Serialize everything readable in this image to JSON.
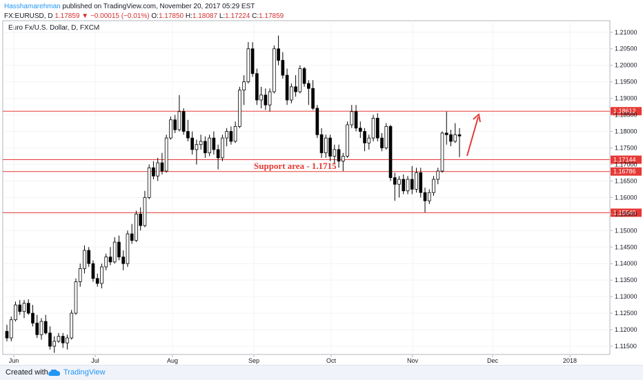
{
  "header": {
    "author": "Hasshamarehman",
    "published_text": "published on TradingView.com, November 20, 2017 05:29 EST",
    "symbol_line": "FX:EURUSD, D",
    "last_price": "1.17859",
    "change_arrow": "▼",
    "change": "−0.00015 (−0.01%)",
    "o_label": "O:",
    "o_value": "1.17850",
    "h_label": "H:",
    "h_value": "1.18087",
    "l_label": "L:",
    "l_value": "1.17224",
    "c_label": "C:",
    "c_value": "1.17859"
  },
  "colors": {
    "up": "#ffffff",
    "down": "#000000",
    "line": "#e53935",
    "accent": "#2196f3"
  },
  "footer": {
    "created_label": "Created with",
    "brand": "TradingView",
    "logo_icon": "tradingview-cloud-icon"
  },
  "chart_data": {
    "type": "candlestick",
    "title": "Euro Fx/U.S. Dollar, D, FXCM",
    "x_labels": [
      "Jun",
      "Jul",
      "Aug",
      "Sep",
      "Oct",
      "Nov",
      "Dec",
      "2018"
    ],
    "y_ticks": [
      "1.21000",
      "1.20500",
      "1.20000",
      "1.19500",
      "1.19000",
      "1.18500",
      "1.18000",
      "1.17500",
      "1.17000",
      "1.16500",
      "1.16000",
      "1.15500",
      "1.15000",
      "1.14500",
      "1.14000",
      "1.13500",
      "1.13000",
      "1.12500",
      "1.12000",
      "1.11500"
    ],
    "ylim": [
      1.1125,
      1.2135
    ],
    "horizontal_lines": [
      {
        "value": 1.18612,
        "label": "1.18612"
      },
      {
        "value": 1.17144,
        "label": "1.17144"
      },
      {
        "value": 1.16786,
        "label": "1.16786"
      },
      {
        "value": 1.1554,
        "label": "1.15540"
      }
    ],
    "annotation": "Support area - 1.1715",
    "arrow": {
      "from": [
        1.172
      ],
      "to": [
        1.1865
      ],
      "direction": "up"
    },
    "candles": [
      [
        1.1195,
        1.1215,
        1.1165,
        1.1175
      ],
      [
        1.1175,
        1.124,
        1.1165,
        1.123
      ],
      [
        1.123,
        1.1285,
        1.1225,
        1.1275
      ],
      [
        1.1275,
        1.129,
        1.1245,
        1.1255
      ],
      [
        1.1255,
        1.129,
        1.1235,
        1.128
      ],
      [
        1.128,
        1.1292,
        1.1245,
        1.125
      ],
      [
        1.125,
        1.1275,
        1.121,
        1.122
      ],
      [
        1.122,
        1.1245,
        1.1175,
        1.1185
      ],
      [
        1.1185,
        1.1235,
        1.117,
        1.1225
      ],
      [
        1.1225,
        1.1245,
        1.1185,
        1.119
      ],
      [
        1.119,
        1.121,
        1.114,
        1.115
      ],
      [
        1.115,
        1.118,
        1.113,
        1.1165
      ],
      [
        1.1165,
        1.119,
        1.116,
        1.118
      ],
      [
        1.118,
        1.119,
        1.1145,
        1.116
      ],
      [
        1.116,
        1.1185,
        1.114,
        1.1175
      ],
      [
        1.1175,
        1.126,
        1.117,
        1.125
      ],
      [
        1.125,
        1.1355,
        1.1245,
        1.1345
      ],
      [
        1.1345,
        1.14,
        1.133,
        1.1385
      ],
      [
        1.1385,
        1.1455,
        1.137,
        1.144
      ],
      [
        1.144,
        1.145,
        1.139,
        1.14
      ],
      [
        1.14,
        1.141,
        1.1345,
        1.1355
      ],
      [
        1.1355,
        1.137,
        1.133,
        1.134
      ],
      [
        1.134,
        1.14,
        1.1325,
        1.139
      ],
      [
        1.139,
        1.143,
        1.138,
        1.142
      ],
      [
        1.142,
        1.145,
        1.1395,
        1.1405
      ],
      [
        1.1405,
        1.148,
        1.14,
        1.1465
      ],
      [
        1.1465,
        1.1485,
        1.141,
        1.142
      ],
      [
        1.142,
        1.144,
        1.138,
        1.14
      ],
      [
        1.14,
        1.15,
        1.139,
        1.149
      ],
      [
        1.149,
        1.152,
        1.146,
        1.147
      ],
      [
        1.147,
        1.156,
        1.1465,
        1.155
      ],
      [
        1.155,
        1.157,
        1.15,
        1.1515
      ],
      [
        1.1515,
        1.162,
        1.151,
        1.16
      ],
      [
        1.16,
        1.17,
        1.1595,
        1.169
      ],
      [
        1.169,
        1.171,
        1.1655,
        1.1665
      ],
      [
        1.1665,
        1.172,
        1.165,
        1.1705
      ],
      [
        1.1705,
        1.1735,
        1.167,
        1.168
      ],
      [
        1.168,
        1.179,
        1.1675,
        1.178
      ],
      [
        1.178,
        1.1845,
        1.1775,
        1.1835
      ],
      [
        1.1835,
        1.185,
        1.1795,
        1.1805
      ],
      [
        1.1805,
        1.191,
        1.18,
        1.186
      ],
      [
        1.186,
        1.187,
        1.179,
        1.18
      ],
      [
        1.18,
        1.1835,
        1.177,
        1.178
      ],
      [
        1.178,
        1.18,
        1.173,
        1.1745
      ],
      [
        1.1745,
        1.1775,
        1.17,
        1.176
      ],
      [
        1.176,
        1.179,
        1.1745,
        1.177
      ],
      [
        1.177,
        1.1785,
        1.172,
        1.1735
      ],
      [
        1.1735,
        1.179,
        1.1725,
        1.178
      ],
      [
        1.178,
        1.18,
        1.173,
        1.1745
      ],
      [
        1.1745,
        1.176,
        1.1685,
        1.172
      ],
      [
        1.172,
        1.179,
        1.171,
        1.178
      ],
      [
        1.178,
        1.181,
        1.1755,
        1.18
      ],
      [
        1.18,
        1.1815,
        1.176,
        1.177
      ],
      [
        1.177,
        1.183,
        1.1765,
        1.1815
      ],
      [
        1.1815,
        1.1935,
        1.181,
        1.1925
      ],
      [
        1.1925,
        1.197,
        1.188,
        1.195
      ],
      [
        1.195,
        1.207,
        1.1945,
        1.205
      ],
      [
        1.205,
        1.207,
        1.1965,
        1.1975
      ],
      [
        1.1975,
        1.199,
        1.188,
        1.1895
      ],
      [
        1.1895,
        1.1935,
        1.187,
        1.191
      ],
      [
        1.191,
        1.193,
        1.1865,
        1.188
      ],
      [
        1.188,
        1.193,
        1.186,
        1.192
      ],
      [
        1.192,
        1.206,
        1.1915,
        1.205
      ],
      [
        1.205,
        1.209,
        1.2,
        1.2015
      ],
      [
        1.2015,
        1.204,
        1.196,
        1.197
      ],
      [
        1.197,
        1.199,
        1.188,
        1.1895
      ],
      [
        1.1895,
        1.1945,
        1.1885,
        1.1935
      ],
      [
        1.1935,
        1.197,
        1.1905,
        1.192
      ],
      [
        1.192,
        1.2,
        1.1915,
        1.199
      ],
      [
        1.199,
        1.1995,
        1.1935,
        1.1945
      ],
      [
        1.1945,
        1.1955,
        1.188,
        1.193
      ],
      [
        1.193,
        1.1955,
        1.1865,
        1.187
      ],
      [
        1.187,
        1.188,
        1.178,
        1.179
      ],
      [
        1.179,
        1.181,
        1.172,
        1.1735
      ],
      [
        1.1735,
        1.179,
        1.172,
        1.178
      ],
      [
        1.178,
        1.179,
        1.171,
        1.1725
      ],
      [
        1.1725,
        1.176,
        1.17,
        1.1745
      ],
      [
        1.1745,
        1.176,
        1.169,
        1.171
      ],
      [
        1.171,
        1.1735,
        1.168,
        1.1725
      ],
      [
        1.1725,
        1.183,
        1.172,
        1.182
      ],
      [
        1.182,
        1.188,
        1.181,
        1.186
      ],
      [
        1.186,
        1.188,
        1.18,
        1.181
      ],
      [
        1.181,
        1.183,
        1.178,
        1.18
      ],
      [
        1.18,
        1.181,
        1.174,
        1.1765
      ],
      [
        1.1765,
        1.179,
        1.1745,
        1.178
      ],
      [
        1.178,
        1.185,
        1.177,
        1.184
      ],
      [
        1.184,
        1.1855,
        1.177,
        1.178
      ],
      [
        1.178,
        1.1795,
        1.174,
        1.175
      ],
      [
        1.175,
        1.1825,
        1.1745,
        1.1815
      ],
      [
        1.1815,
        1.182,
        1.165,
        1.166
      ],
      [
        1.166,
        1.1675,
        1.159,
        1.164
      ],
      [
        1.164,
        1.1665,
        1.16,
        1.1655
      ],
      [
        1.1655,
        1.167,
        1.161,
        1.162
      ],
      [
        1.162,
        1.1665,
        1.161,
        1.1655
      ],
      [
        1.1655,
        1.1695,
        1.161,
        1.1625
      ],
      [
        1.1625,
        1.169,
        1.1615,
        1.1675
      ],
      [
        1.1675,
        1.169,
        1.16,
        1.1615
      ],
      [
        1.1615,
        1.163,
        1.1555,
        1.159
      ],
      [
        1.159,
        1.1625,
        1.158,
        1.1615
      ],
      [
        1.1615,
        1.1665,
        1.1605,
        1.1655
      ],
      [
        1.1655,
        1.169,
        1.164,
        1.168
      ],
      [
        1.168,
        1.18,
        1.1675,
        1.1795
      ],
      [
        1.1795,
        1.186,
        1.176,
        1.179
      ],
      [
        1.179,
        1.1805,
        1.1755,
        1.177
      ],
      [
        1.177,
        1.1825,
        1.1765,
        1.179
      ],
      [
        1.179,
        1.181,
        1.1722,
        1.1786
      ]
    ]
  }
}
